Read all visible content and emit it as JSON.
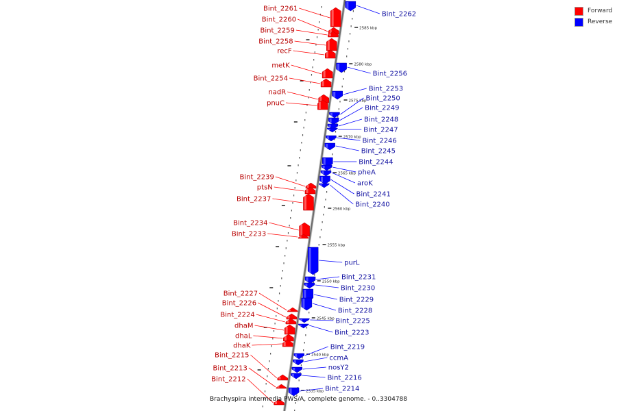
{
  "legend": {
    "forward_label": "Forward",
    "reverse_label": "Reverse",
    "forward_color": "#ff0000",
    "reverse_color": "#0000ff"
  },
  "caption": "Brachyspira intermedia PWS/A, complete genome. - 0..3304788",
  "scale_labels": [
    "2585 kbp",
    "2580 kbp",
    "2575 kbp",
    "2570 kbp",
    "2565 kbp",
    "2560 kbp",
    "2555 kbp",
    "2550 kbp",
    "2545 kbp",
    "2540 kbp",
    "2535 kbp"
  ],
  "forward_genes": [
    "Bint_2261",
    "Bint_2260",
    "Bint_2259",
    "Bint_2258",
    "recF",
    "metK",
    "Bint_2254",
    "nadR",
    "pnuC",
    "Bint_2239",
    "ptsN",
    "Bint_2237",
    "Bint_2234",
    "Bint_2233",
    "Bint_2227",
    "Bint_2226",
    "Bint_2224",
    "dhaM",
    "dhaL",
    "dhaK",
    "Bint_2215",
    "Bint_2213",
    "Bint_2212"
  ],
  "reverse_genes": [
    "Bint_2262",
    "Bint_2256",
    "Bint_2253",
    "Bint_2250",
    "Bint_2249",
    "Bint_2248",
    "Bint_2247",
    "Bint_2246",
    "Bint_2245",
    "Bint_2244",
    "pheA",
    "aroK",
    "Bint_2241",
    "Bint_2240",
    "purL",
    "Bint_2231",
    "Bint_2230",
    "Bint_2229",
    "Bint_2228",
    "Bint_2225",
    "Bint_2223",
    "Bint_2219",
    "ccmA",
    "nosY2",
    "Bint_2216",
    "Bint_2214"
  ]
}
